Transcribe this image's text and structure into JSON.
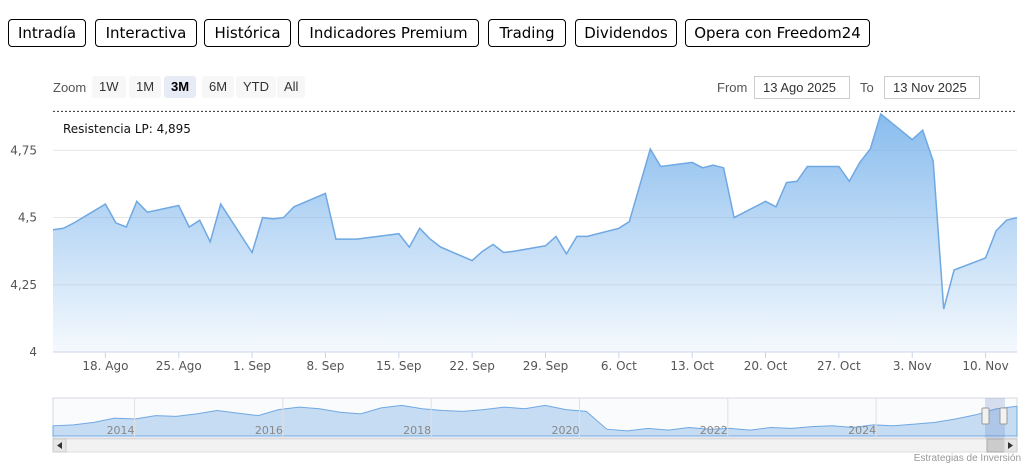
{
  "tabs": [
    {
      "label": "Intradía",
      "style": "grey"
    },
    {
      "label": "Interactiva",
      "style": "grey"
    },
    {
      "label": "Histórica",
      "style": "active"
    },
    {
      "label": "Indicadores Premium",
      "style": "red"
    },
    {
      "label": "Trading",
      "style": "red"
    },
    {
      "label": "Dividendos",
      "style": "grey"
    },
    {
      "label": "Opera con Freedom24",
      "style": "green"
    }
  ],
  "zoom": {
    "label": "Zoom",
    "buttons": [
      "1W",
      "1M",
      "3M",
      "6M",
      "YTD",
      "All"
    ],
    "selected": "3M"
  },
  "range": {
    "from_label": "From",
    "from_value": "13 Ago 2025",
    "to_label": "To",
    "to_value": "13 Nov 2025"
  },
  "credit": "Estrategias de Inversión",
  "chart_data": {
    "type": "area",
    "series_color": "#7cb5ec",
    "ylim": [
      4,
      4.9
    ],
    "y_ticks": [
      4,
      4.25,
      4.5,
      4.75
    ],
    "y_tick_labels": [
      "4",
      "4,25",
      "4,5",
      "4,75"
    ],
    "x_start": "2025-08-13",
    "x_end": "2025-11-13",
    "x_ticks": [
      {
        "date": "2025-08-18",
        "label": "18. Ago"
      },
      {
        "date": "2025-08-25",
        "label": "25. Ago"
      },
      {
        "date": "2025-09-01",
        "label": "1. Sep"
      },
      {
        "date": "2025-09-08",
        "label": "8. Sep"
      },
      {
        "date": "2025-09-15",
        "label": "15. Sep"
      },
      {
        "date": "2025-09-22",
        "label": "22. Sep"
      },
      {
        "date": "2025-09-29",
        "label": "29. Sep"
      },
      {
        "date": "2025-10-06",
        "label": "6. Oct"
      },
      {
        "date": "2025-10-13",
        "label": "13. Oct"
      },
      {
        "date": "2025-10-20",
        "label": "20. Oct"
      },
      {
        "date": "2025-10-27",
        "label": "27. Oct"
      },
      {
        "date": "2025-11-03",
        "label": "3. Nov"
      },
      {
        "date": "2025-11-10",
        "label": "10. Nov"
      }
    ],
    "resistance": {
      "label": "Resistencia LP: 4,895",
      "value": 4.895
    },
    "points": [
      [
        "2025-08-13",
        4.455
      ],
      [
        "2025-08-14",
        4.46
      ],
      [
        "2025-08-15",
        4.48
      ],
      [
        "2025-08-18",
        4.55
      ],
      [
        "2025-08-19",
        4.48
      ],
      [
        "2025-08-20",
        4.465
      ],
      [
        "2025-08-21",
        4.56
      ],
      [
        "2025-08-22",
        4.52
      ],
      [
        "2025-08-25",
        4.545
      ],
      [
        "2025-08-26",
        4.465
      ],
      [
        "2025-08-27",
        4.49
      ],
      [
        "2025-08-28",
        4.41
      ],
      [
        "2025-08-29",
        4.55
      ],
      [
        "2025-09-01",
        4.37
      ],
      [
        "2025-09-02",
        4.5
      ],
      [
        "2025-09-03",
        4.495
      ],
      [
        "2025-09-04",
        4.5
      ],
      [
        "2025-09-05",
        4.54
      ],
      [
        "2025-09-08",
        4.59
      ],
      [
        "2025-09-09",
        4.42
      ],
      [
        "2025-09-10",
        4.42
      ],
      [
        "2025-09-11",
        4.42
      ],
      [
        "2025-09-12",
        4.425
      ],
      [
        "2025-09-15",
        4.44
      ],
      [
        "2025-09-16",
        4.39
      ],
      [
        "2025-09-17",
        4.46
      ],
      [
        "2025-09-18",
        4.42
      ],
      [
        "2025-09-19",
        4.39
      ],
      [
        "2025-09-22",
        4.34
      ],
      [
        "2025-09-23",
        4.375
      ],
      [
        "2025-09-24",
        4.4
      ],
      [
        "2025-09-25",
        4.37
      ],
      [
        "2025-09-26",
        4.375
      ],
      [
        "2025-09-29",
        4.395
      ],
      [
        "2025-09-30",
        4.43
      ],
      [
        "2025-10-01",
        4.365
      ],
      [
        "2025-10-02",
        4.43
      ],
      [
        "2025-10-03",
        4.43
      ],
      [
        "2025-10-06",
        4.46
      ],
      [
        "2025-10-07",
        4.485
      ],
      [
        "2025-10-08",
        4.62
      ],
      [
        "2025-10-09",
        4.755
      ],
      [
        "2025-10-10",
        4.69
      ],
      [
        "2025-10-13",
        4.705
      ],
      [
        "2025-10-14",
        4.685
      ],
      [
        "2025-10-15",
        4.695
      ],
      [
        "2025-10-16",
        4.685
      ],
      [
        "2025-10-17",
        4.5
      ],
      [
        "2025-10-20",
        4.56
      ],
      [
        "2025-10-21",
        4.54
      ],
      [
        "2025-10-22",
        4.63
      ],
      [
        "2025-10-23",
        4.635
      ],
      [
        "2025-10-24",
        4.69
      ],
      [
        "2025-10-27",
        4.69
      ],
      [
        "2025-10-28",
        4.635
      ],
      [
        "2025-10-29",
        4.705
      ],
      [
        "2025-10-30",
        4.755
      ],
      [
        "2025-10-31",
        4.885
      ],
      [
        "2025-11-03",
        4.79
      ],
      [
        "2025-11-04",
        4.825
      ],
      [
        "2025-11-05",
        4.71
      ],
      [
        "2025-11-06",
        4.16
      ],
      [
        "2025-11-07",
        4.305
      ],
      [
        "2025-11-10",
        4.35
      ],
      [
        "2025-11-11",
        4.45
      ],
      [
        "2025-11-12",
        4.49
      ]
    ],
    "navigator": {
      "year_labels": [
        "2014",
        "2016",
        "2018",
        "2020",
        "2022",
        "2024"
      ],
      "start_year": 2012.9,
      "end_year": 2025.9,
      "values": [
        1.2,
        1.3,
        1.6,
        2.1,
        2.0,
        2.4,
        2.3,
        2.6,
        3.0,
        2.7,
        2.4,
        3.1,
        3.4,
        3.2,
        2.8,
        2.6,
        3.3,
        3.6,
        3.2,
        3.0,
        2.9,
        3.1,
        3.4,
        3.2,
        3.6,
        3.1,
        2.9,
        0.8,
        0.6,
        0.9,
        0.7,
        1.0,
        0.8,
        0.9,
        0.7,
        1.0,
        0.9,
        1.1,
        1.2,
        1.0,
        1.3,
        1.2,
        1.4,
        1.6,
        2.0,
        2.5,
        3.2,
        3.5
      ]
    }
  }
}
